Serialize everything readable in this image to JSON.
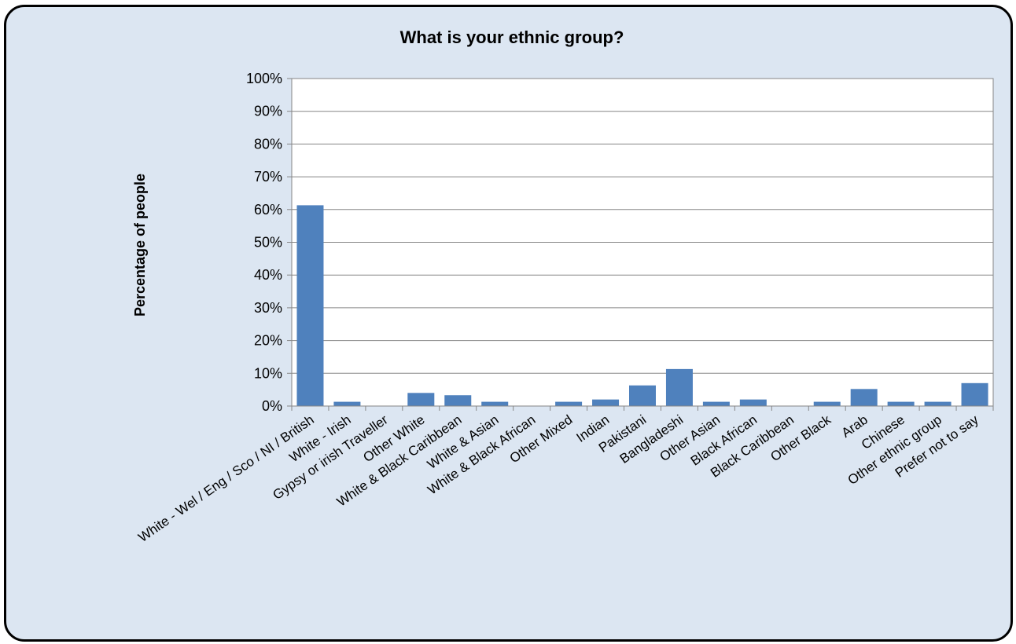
{
  "chart_data": {
    "type": "bar",
    "title": "What is your ethnic group?",
    "xlabel": "",
    "ylabel": "Percentage of people",
    "ylim": [
      0,
      100
    ],
    "y_ticks": [
      "0%",
      "10%",
      "20%",
      "30%",
      "40%",
      "50%",
      "60%",
      "70%",
      "80%",
      "90%",
      "100%"
    ],
    "grid": true,
    "legend": "none",
    "bar_color": "#4f81bd",
    "categories": [
      "White - Wel / Eng / Sco / NI / British",
      "White - Irish",
      "Gypsy or irish Traveller",
      "Other White",
      "White & Black Caribbean",
      "White & Asian",
      "White & Black African",
      "Other Mixed",
      "Indian",
      "Pakistani",
      "Bangladeshi",
      "Other Asian",
      "Black African",
      "Black Caribbean",
      "Other Black",
      "Arab",
      "Chinese",
      "Other ethnic group",
      "Prefer not to say"
    ],
    "values": [
      61.3,
      1.3,
      0,
      4.0,
      3.3,
      1.3,
      0,
      1.3,
      2.0,
      6.3,
      11.3,
      1.3,
      2.0,
      0,
      1.3,
      5.2,
      1.3,
      1.3,
      7.0
    ]
  }
}
